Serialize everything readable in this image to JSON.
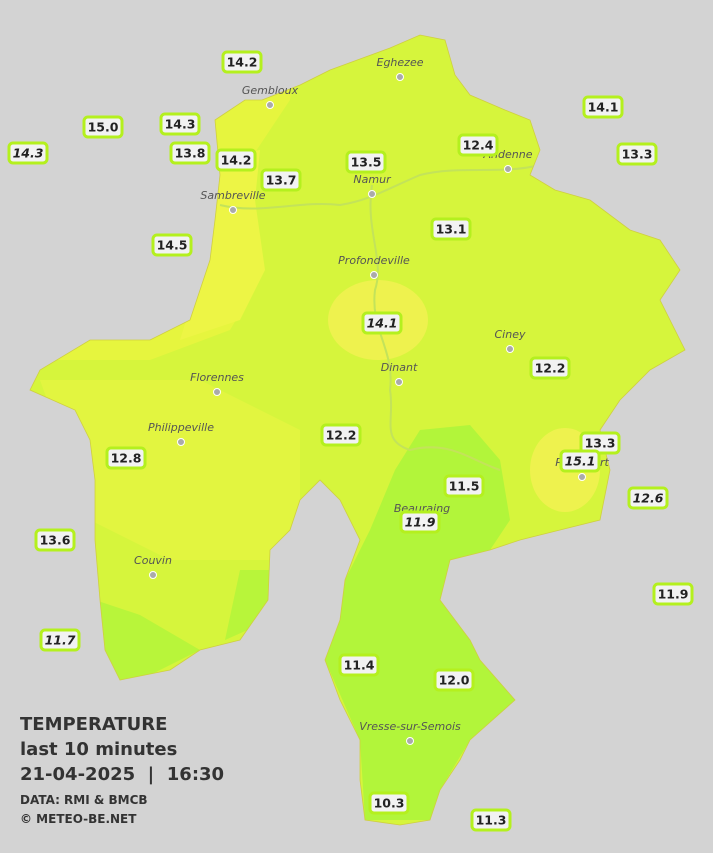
{
  "caption": {
    "title": "TEMPERATURE",
    "period": "last 10 minutes",
    "datetime": "21-04-2025  |  16:30",
    "source": "DATA: RMI & BMCB",
    "copyright": "© METEO-BE.NET"
  },
  "cities": [
    "Eghezee",
    "Gembloux",
    "Andenne",
    "Namur",
    "Sambreville",
    "Profondeville",
    "Ciney",
    "Dinant",
    "Florennes",
    "Philippeville",
    "Rochefort",
    "Beauraing",
    "Couvin",
    "Vresse-sur-Semois"
  ],
  "stations": [
    {
      "value": "14.2",
      "italic": false
    },
    {
      "value": "14.1",
      "italic": false
    },
    {
      "value": "15.0",
      "italic": false
    },
    {
      "value": "14.3",
      "italic": false
    },
    {
      "value": "14.3",
      "italic": true
    },
    {
      "value": "13.8",
      "italic": false
    },
    {
      "value": "14.2",
      "italic": false
    },
    {
      "value": "12.4",
      "italic": false
    },
    {
      "value": "13.5",
      "italic": false
    },
    {
      "value": "13.3",
      "italic": false
    },
    {
      "value": "13.7",
      "italic": false
    },
    {
      "value": "13.1",
      "italic": false
    },
    {
      "value": "14.5",
      "italic": false
    },
    {
      "value": "14.1",
      "italic": true
    },
    {
      "value": "12.2",
      "italic": false
    },
    {
      "value": "12.2",
      "italic": false
    },
    {
      "value": "13.3",
      "italic": false
    },
    {
      "value": "15.1",
      "italic": true
    },
    {
      "value": "12.8",
      "italic": false
    },
    {
      "value": "11.5",
      "italic": false
    },
    {
      "value": "12.6",
      "italic": true
    },
    {
      "value": "11.9",
      "italic": true
    },
    {
      "value": "13.6",
      "italic": false
    },
    {
      "value": "11.9",
      "italic": false
    },
    {
      "value": "11.7",
      "italic": true
    },
    {
      "value": "11.4",
      "italic": false
    },
    {
      "value": "12.0",
      "italic": false
    },
    {
      "value": "10.3",
      "italic": false
    },
    {
      "value": "11.3",
      "italic": false
    }
  ]
}
